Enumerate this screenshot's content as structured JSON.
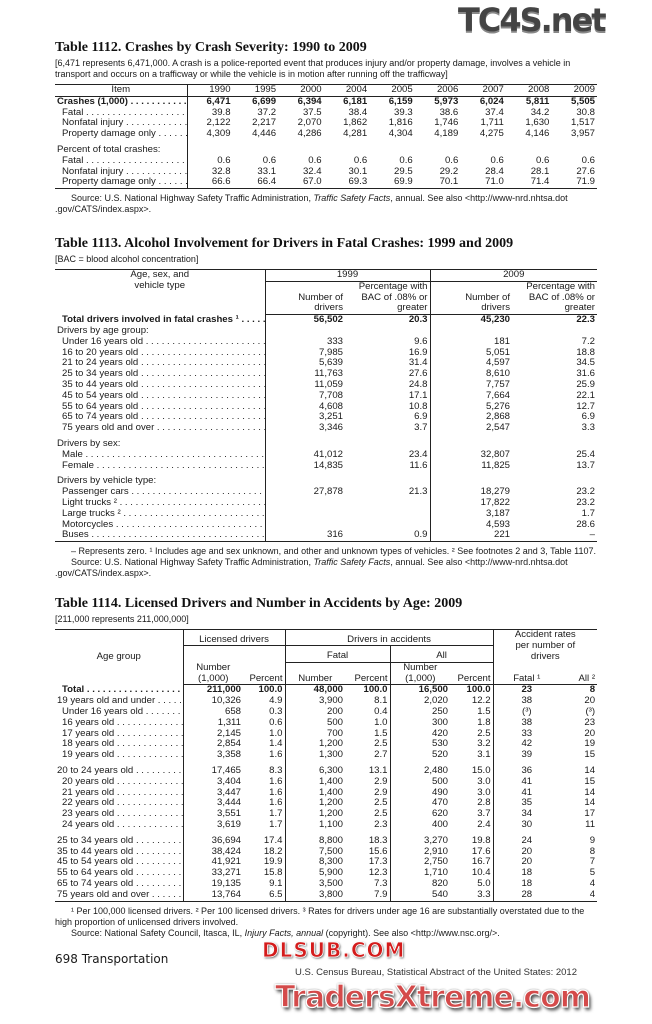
{
  "t1112": {
    "title": "Table 1112. Crashes by Crash Severity: 1990 to 2009",
    "note": "[6,471 represents 6,471,000. A crash is a police-reported event that produces injury and/or property damage, involves a vehicle in transport and occurs on a trafficway or while the vehicle is in motion after running off the trafficway]",
    "head_item": "Item",
    "years": [
      "1990",
      "1995",
      "2000",
      "2004",
      "2005",
      "2006",
      "2007",
      "2008",
      "2009"
    ],
    "groups": [
      {
        "rows": [
          {
            "label": "Crashes (1,000)",
            "type": "total",
            "values": [
              "6,471",
              "6,699",
              "6,394",
              "6,181",
              "6,159",
              "5,973",
              "6,024",
              "5,811",
              "5,505"
            ]
          },
          {
            "label": "Fatal",
            "type": "item",
            "values": [
              "39.8",
              "37.2",
              "37.5",
              "38.4",
              "39.3",
              "38.6",
              "37.4",
              "34.2",
              "30.8"
            ]
          },
          {
            "label": "Nonfatal injury",
            "type": "item",
            "values": [
              "2,122",
              "2,217",
              "2,070",
              "1,862",
              "1,816",
              "1,746",
              "1,711",
              "1,630",
              "1,517"
            ]
          },
          {
            "label": "Property damage only",
            "type": "item",
            "values": [
              "4,309",
              "4,446",
              "4,286",
              "4,281",
              "4,304",
              "4,189",
              "4,275",
              "4,146",
              "3,957"
            ]
          }
        ]
      },
      {
        "rows": [
          {
            "label": "Percent of total crashes:",
            "type": "heading",
            "values": []
          },
          {
            "label": "Fatal",
            "type": "item",
            "values": [
              "0.6",
              "0.6",
              "0.6",
              "0.6",
              "0.6",
              "0.6",
              "0.6",
              "0.6",
              "0.6"
            ]
          },
          {
            "label": "Nonfatal injury",
            "type": "item",
            "values": [
              "32.8",
              "33.1",
              "32.4",
              "30.1",
              "29.5",
              "29.2",
              "28.4",
              "28.1",
              "27.6"
            ]
          },
          {
            "label": "Property damage only",
            "type": "item",
            "values": [
              "66.6",
              "66.4",
              "67.0",
              "69.3",
              "69.9",
              "70.1",
              "71.0",
              "71.4",
              "71.9"
            ]
          }
        ]
      }
    ],
    "source_prefix": "Source: U.S. National Highway Safety Traffic Administration, ",
    "source_italic": "Traffic Safety Facts",
    "source_suffix": ", annual. See also <http://www-nrd.nhtsa.dot .gov/CATS/index.aspx>."
  },
  "t1113": {
    "title": "Table 1113. Alcohol Involvement for Drivers in Fatal Crashes: 1999 and 2009",
    "note": "[BAC = blood alcohol concentration]",
    "head_label": "Age, sex, and vehicle type",
    "year_a": "1999",
    "year_b": "2009",
    "col_number": "Number of drivers",
    "col_pct": "Percentage with BAC of .08% or greater",
    "groups": [
      {
        "rows": [
          {
            "label": "Total drivers involved in fatal crashes ¹",
            "type": "total",
            "values": [
              "56,502",
              "20.3",
              "45,230",
              "22.3"
            ]
          },
          {
            "label": "Drivers by age group:",
            "type": "heading",
            "values": []
          },
          {
            "label": "Under 16 years old",
            "type": "item",
            "values": [
              "333",
              "9.6",
              "181",
              "7.2"
            ]
          },
          {
            "label": "16 to 20 years old",
            "type": "item",
            "values": [
              "7,985",
              "16.9",
              "5,051",
              "18.8"
            ]
          },
          {
            "label": "21 to 24 years old",
            "type": "item",
            "values": [
              "5,639",
              "31.4",
              "4,597",
              "34.5"
            ]
          },
          {
            "label": "25 to 34 years old",
            "type": "item",
            "values": [
              "11,763",
              "27.6",
              "8,610",
              "31.6"
            ]
          },
          {
            "label": "35 to 44 years old",
            "type": "item",
            "values": [
              "11,059",
              "24.8",
              "7,757",
              "25.9"
            ]
          },
          {
            "label": "45 to 54 years old",
            "type": "item",
            "values": [
              "7,708",
              "17.1",
              "7,664",
              "22.1"
            ]
          },
          {
            "label": "55 to 64 years old",
            "type": "item",
            "values": [
              "4,608",
              "10.8",
              "5,276",
              "12.7"
            ]
          },
          {
            "label": "65 to 74 years old",
            "type": "item",
            "values": [
              "3,251",
              "6.9",
              "2,868",
              "6.9"
            ]
          },
          {
            "label": "75 years old and over",
            "type": "item",
            "values": [
              "3,346",
              "3.7",
              "2,547",
              "3.3"
            ]
          }
        ]
      },
      {
        "rows": [
          {
            "label": "Drivers by sex:",
            "type": "heading",
            "values": []
          },
          {
            "label": "Male",
            "type": "item",
            "values": [
              "41,012",
              "23.4",
              "32,807",
              "25.4"
            ]
          },
          {
            "label": "Female",
            "type": "item",
            "values": [
              "14,835",
              "11.6",
              "11,825",
              "13.7"
            ]
          }
        ]
      },
      {
        "rows": [
          {
            "label": "Drivers by vehicle type:",
            "type": "heading",
            "values": []
          },
          {
            "label": "Passenger cars",
            "type": "item",
            "values": [
              "27,878",
              "21.3",
              "18,279",
              "23.2"
            ]
          },
          {
            "label": "Light trucks ²",
            "type": "item",
            "values": [
              "",
              "",
              "17,822",
              "23.2"
            ]
          },
          {
            "label": "Large trucks ²",
            "type": "item",
            "values": [
              "",
              "",
              "3,187",
              "1.7"
            ]
          },
          {
            "label": "Motorcycles",
            "type": "item",
            "values": [
              "",
              "",
              "4,593",
              "28.6"
            ]
          },
          {
            "label": "Buses",
            "type": "item",
            "values": [
              "316",
              "0.9",
              "221",
              "–"
            ]
          }
        ]
      }
    ],
    "footnote": "– Represents zero. ¹ Includes age and sex unknown, and other and unknown types of vehicles. ² See footnotes 2 and 3, Table 1107.",
    "source_prefix": "Source: U.S. National Highway Safety Traffic Administration, ",
    "source_italic": "Traffic Safety Facts",
    "source_suffix": ", annual. See also <http://www-nrd.nhtsa.dot .gov/CATS/index.aspx>."
  },
  "t1114": {
    "title": "Table 1114. Licensed Drivers and Number in Accidents by Age: 2009",
    "note": "[211,000 represents 211,000,000]",
    "head_age": "Age group",
    "head_licensed": "Licensed drivers",
    "head_accidents": "Drivers in accidents",
    "head_rates": "Accident rates per number of drivers",
    "head_fatal": "Fatal",
    "head_all": "All",
    "col_number_1000": "Number (1,000)",
    "col_percent": "Percent",
    "col_number": "Number",
    "col_fatal_rate": "Fatal ¹",
    "col_all_rate": "All ²",
    "groups": [
      {
        "rows": [
          {
            "label": "Total",
            "type": "total",
            "values": [
              "211,000",
              "100.0",
              "48,000",
              "100.0",
              "16,500",
              "100.0",
              "23",
              "8"
            ]
          },
          {
            "label": "19 years old and under",
            "type": "top",
            "values": [
              "10,326",
              "4.9",
              "3,900",
              "8.1",
              "2,020",
              "12.2",
              "38",
              "20"
            ]
          },
          {
            "label": "Under 16 years old",
            "type": "item",
            "values": [
              "658",
              "0.3",
              "200",
              "0.4",
              "250",
              "1.5",
              "(³)",
              "(³)"
            ]
          },
          {
            "label": "16 years old",
            "type": "item",
            "values": [
              "1,311",
              "0.6",
              "500",
              "1.0",
              "300",
              "1.8",
              "38",
              "23"
            ]
          },
          {
            "label": "17 years old",
            "type": "item",
            "values": [
              "2,145",
              "1.0",
              "700",
              "1.5",
              "420",
              "2.5",
              "33",
              "20"
            ]
          },
          {
            "label": "18 years old",
            "type": "item",
            "values": [
              "2,854",
              "1.4",
              "1,200",
              "2.5",
              "530",
              "3.2",
              "42",
              "19"
            ]
          },
          {
            "label": "19 years old",
            "type": "item",
            "values": [
              "3,358",
              "1.6",
              "1,300",
              "2.7",
              "520",
              "3.1",
              "39",
              "15"
            ]
          }
        ]
      },
      {
        "rows": [
          {
            "label": "20 to 24 years old",
            "type": "top",
            "values": [
              "17,465",
              "8.3",
              "6,300",
              "13.1",
              "2,480",
              "15.0",
              "36",
              "14"
            ]
          },
          {
            "label": "20 years old",
            "type": "item",
            "values": [
              "3,404",
              "1.6",
              "1,400",
              "2.9",
              "500",
              "3.0",
              "41",
              "15"
            ]
          },
          {
            "label": "21 years old",
            "type": "item",
            "values": [
              "3,447",
              "1.6",
              "1,400",
              "2.9",
              "490",
              "3.0",
              "41",
              "14"
            ]
          },
          {
            "label": "22 years old",
            "type": "item",
            "values": [
              "3,444",
              "1.6",
              "1,200",
              "2.5",
              "470",
              "2.8",
              "35",
              "14"
            ]
          },
          {
            "label": "23 years old",
            "type": "item",
            "values": [
              "3,551",
              "1.7",
              "1,200",
              "2.5",
              "620",
              "3.7",
              "34",
              "17"
            ]
          },
          {
            "label": "24 years old",
            "type": "item",
            "values": [
              "3,619",
              "1.7",
              "1,100",
              "2.3",
              "400",
              "2.4",
              "30",
              "11"
            ]
          }
        ]
      },
      {
        "rows": [
          {
            "label": "25 to 34 years old",
            "type": "top",
            "values": [
              "36,694",
              "17.4",
              "8,800",
              "18.3",
              "3,270",
              "19.8",
              "24",
              "9"
            ]
          },
          {
            "label": "35 to 44 years old",
            "type": "top",
            "values": [
              "38,424",
              "18.2",
              "7,500",
              "15.6",
              "2,910",
              "17.6",
              "20",
              "8"
            ]
          },
          {
            "label": "45 to 54 years old",
            "type": "top",
            "values": [
              "41,921",
              "19.9",
              "8,300",
              "17.3",
              "2,750",
              "16.7",
              "20",
              "7"
            ]
          },
          {
            "label": "55 to 64 years old",
            "type": "top",
            "values": [
              "33,271",
              "15.8",
              "5,900",
              "12.3",
              "1,710",
              "10.4",
              "18",
              "5"
            ]
          },
          {
            "label": "65 to 74 years old",
            "type": "top",
            "values": [
              "19,135",
              "9.1",
              "3,500",
              "7.3",
              "820",
              "5.0",
              "18",
              "4"
            ]
          },
          {
            "label": "75 years old and over",
            "type": "top",
            "values": [
              "13,764",
              "6.5",
              "3,800",
              "7.9",
              "540",
              "3.3",
              "28",
              "4"
            ]
          }
        ]
      }
    ],
    "footnote": "¹ Per 100,000 licensed drivers. ² Per 100 licensed drivers. ³ Rates for drivers under age 16 are substantially overstated due to the high proportion of unlicensed drivers involved.",
    "source_prefix": "Source: National Safety Council, Itasca, IL, ",
    "source_italic": "Injury Facts, annual",
    "source_suffix": " (copyright). See also <http://www.nsc.org/>."
  },
  "footer": {
    "page": "698  Transportation",
    "publication": "U.S. Census Bureau, Statistical Abstract of the United States: 2012"
  },
  "watermarks": [
    "TC4S.net",
    "DLSUB.COM",
    "TradersXtreme.com"
  ]
}
